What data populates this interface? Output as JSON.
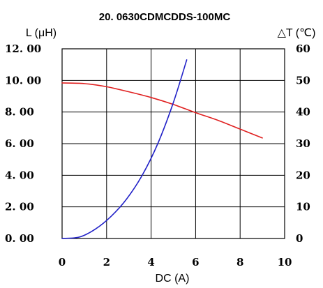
{
  "chart_data": {
    "type": "line",
    "title": "20. 0630CDMCDDS-100MC",
    "xlabel": "DC (A)",
    "ylabel_left": "L (μH)",
    "ylabel_right": "△T (℃)",
    "xlim": [
      0,
      10
    ],
    "ylim_left": [
      0,
      12
    ],
    "ylim_right": [
      0,
      60
    ],
    "x_ticks": [
      "0",
      "2",
      "4",
      "6",
      "8",
      "10"
    ],
    "y_left_ticks": [
      "0. 00",
      "2. 00",
      "4. 00",
      "6. 00",
      "8. 00",
      "10. 00",
      "12. 00"
    ],
    "y_right_ticks": [
      "0",
      "10",
      "20",
      "30",
      "40",
      "50",
      "60"
    ],
    "grid": true,
    "series": [
      {
        "axis": "left",
        "color": "#e02020",
        "x": [
          0,
          1,
          2,
          3,
          4,
          5,
          6,
          7,
          8,
          9
        ],
        "y": [
          9.84,
          9.8,
          9.6,
          9.28,
          8.92,
          8.48,
          7.96,
          7.48,
          6.92,
          6.36
        ]
      },
      {
        "axis": "right",
        "color": "#2222c8",
        "x": [
          0,
          0.8,
          1.5,
          2.2,
          2.9,
          3.6,
          4.3,
          5.0,
          5.6
        ],
        "y": [
          0,
          0.5,
          3,
          7,
          12.5,
          20,
          30,
          43,
          56.5
        ]
      }
    ]
  }
}
